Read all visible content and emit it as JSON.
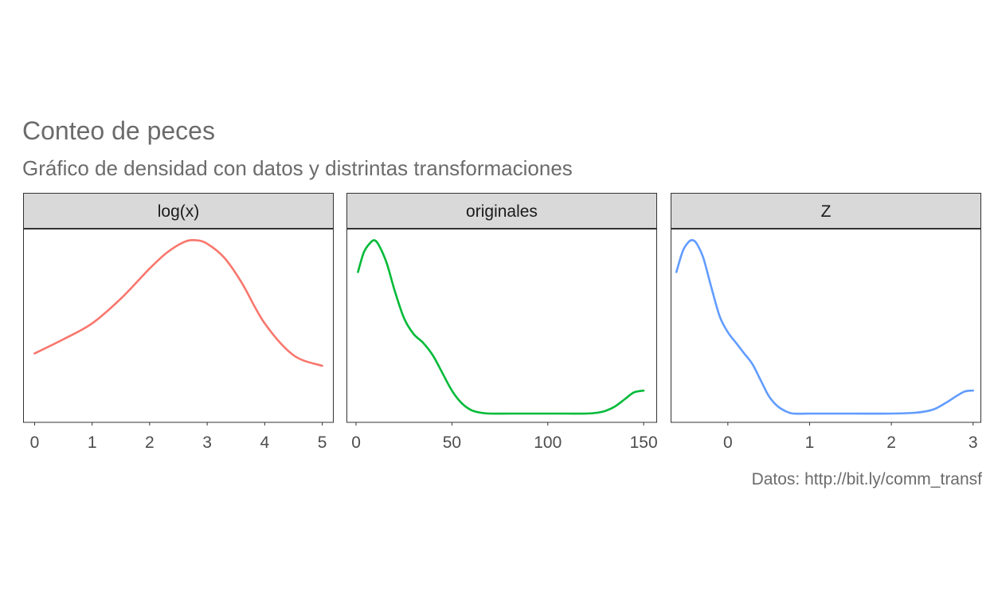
{
  "chart_data": {
    "type": "line",
    "title": "Conteo de peces",
    "subtitle": "Gráfico de densidad con datos y distrintas transformaciones",
    "caption": "Datos: http://bit.ly/comm_transf",
    "xlabel": "",
    "ylabel": "",
    "grid": false,
    "legend": "none",
    "facet_scales": "free",
    "panels": [
      {
        "label": "log(x)",
        "color": "#F8766D",
        "xlim": [
          -0.2,
          5.2
        ],
        "ylim": [
          0,
          1
        ],
        "xticks": [
          0,
          1,
          2,
          3,
          4,
          5
        ],
        "x": [
          0.0,
          0.5,
          1.0,
          1.5,
          2.0,
          2.3,
          2.6,
          2.8,
          3.0,
          3.3,
          3.6,
          4.0,
          4.5,
          5.0
        ],
        "y": [
          0.34,
          0.42,
          0.51,
          0.65,
          0.82,
          0.91,
          0.97,
          0.98,
          0.96,
          0.88,
          0.74,
          0.51,
          0.33,
          0.27
        ]
      },
      {
        "label": "originales",
        "color": "#00BA38",
        "xlim": [
          -5,
          157
        ],
        "ylim": [
          0,
          1
        ],
        "xticks": [
          0,
          50,
          100,
          150
        ],
        "x": [
          1,
          4,
          7,
          9.5,
          12,
          16,
          20,
          25,
          30,
          35,
          40,
          45,
          50,
          55,
          60,
          65,
          70,
          80,
          90,
          100,
          110,
          120,
          126,
          130,
          135,
          140,
          145,
          150
        ],
        "y": [
          0.8,
          0.91,
          0.96,
          0.98,
          0.95,
          0.85,
          0.7,
          0.54,
          0.45,
          0.4,
          0.33,
          0.23,
          0.13,
          0.06,
          0.02,
          0.005,
          0.0,
          0.0,
          0.0,
          0.0,
          0.0,
          0.0,
          0.005,
          0.015,
          0.04,
          0.08,
          0.12,
          0.13
        ]
      },
      {
        "label": "Z",
        "color": "#619CFF",
        "xlim": [
          -0.7,
          3.1
        ],
        "ylim": [
          0,
          1
        ],
        "xticks": [
          0,
          1,
          2,
          3
        ],
        "x": [
          -0.63,
          -0.55,
          -0.48,
          -0.43,
          -0.38,
          -0.3,
          -0.2,
          -0.1,
          0.0,
          0.1,
          0.2,
          0.3,
          0.4,
          0.5,
          0.6,
          0.7,
          0.8,
          1.0,
          1.5,
          2.0,
          2.3,
          2.45,
          2.55,
          2.7,
          2.8,
          2.9,
          3.0
        ],
        "y": [
          0.8,
          0.92,
          0.97,
          0.98,
          0.96,
          0.88,
          0.71,
          0.55,
          0.46,
          0.4,
          0.34,
          0.28,
          0.19,
          0.1,
          0.045,
          0.015,
          0.0,
          0.0,
          0.0,
          0.0,
          0.005,
          0.015,
          0.03,
          0.07,
          0.1,
          0.125,
          0.13
        ]
      }
    ]
  }
}
